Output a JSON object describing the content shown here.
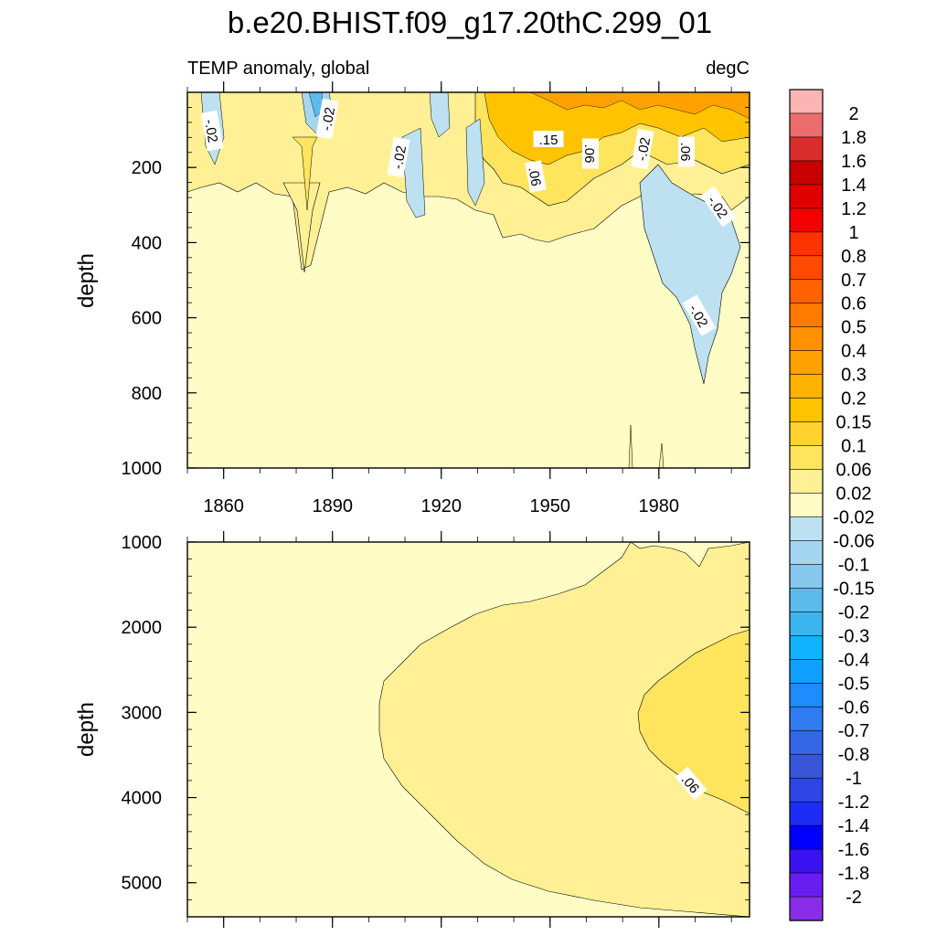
{
  "chart_data": {
    "type": "contour",
    "title": "b.e20.BHIST.f09_g17.20thC.299_01",
    "left_subtitle": "TEMP anomaly, global",
    "right_subtitle": "degC",
    "ylabel": "depth",
    "x_ticks": [
      1860,
      1890,
      1920,
      1950,
      1980
    ],
    "xlim": [
      1850,
      2005
    ],
    "panels": [
      {
        "name": "upper",
        "ylim": [
          0,
          1000
        ],
        "y_ticks": [
          200,
          400,
          600,
          800,
          1000
        ],
        "contour_labels": [
          "-.02",
          "-.02",
          "-.02",
          ".15",
          ".06",
          ".06",
          "-.02",
          ".06",
          "-.02",
          "-.02"
        ]
      },
      {
        "name": "lower",
        "ylim": [
          1000,
          5400
        ],
        "y_ticks": [
          1000,
          2000,
          3000,
          4000,
          5000
        ],
        "contour_labels": [
          ".06"
        ]
      }
    ],
    "colorbar": {
      "labels": [
        "2",
        "1.8",
        "1.6",
        "1.4",
        "1.2",
        "1",
        "0.8",
        "0.7",
        "0.6",
        "0.5",
        "0.4",
        "0.3",
        "0.2",
        "0.15",
        "0.1",
        "0.06",
        "0.02",
        "-0.02",
        "-0.06",
        "-0.1",
        "-0.15",
        "-0.2",
        "-0.3",
        "-0.4",
        "-0.5",
        "-0.6",
        "-0.7",
        "-0.8",
        "-1",
        "-1.2",
        "-1.4",
        "-1.6",
        "-1.8",
        "-2"
      ],
      "colors": [
        "#FDB4B4",
        "#EC6D6D",
        "#DA2E2E",
        "#C80000",
        "#E00000",
        "#F40000",
        "#FF3300",
        "#FF4A00",
        "#FF6200",
        "#FF7A00",
        "#FF9000",
        "#FFA100",
        "#FFB200",
        "#FFC300",
        "#FFD22E",
        "#FFE45E",
        "#FFF095",
        "#FFFCC6",
        "#BDE1F1",
        "#A4D6F2",
        "#86C8EE",
        "#5CBBEB",
        "#3CB5EE",
        "#10B4FF",
        "#10A0FF",
        "#1E8BFF",
        "#2F7BF2",
        "#3367E5",
        "#3857D8",
        "#2E47E4",
        "#1E2DF5",
        "#0000FF",
        "#3A12F0",
        "#6A1DF0",
        "#8A2DE8"
      ]
    }
  }
}
